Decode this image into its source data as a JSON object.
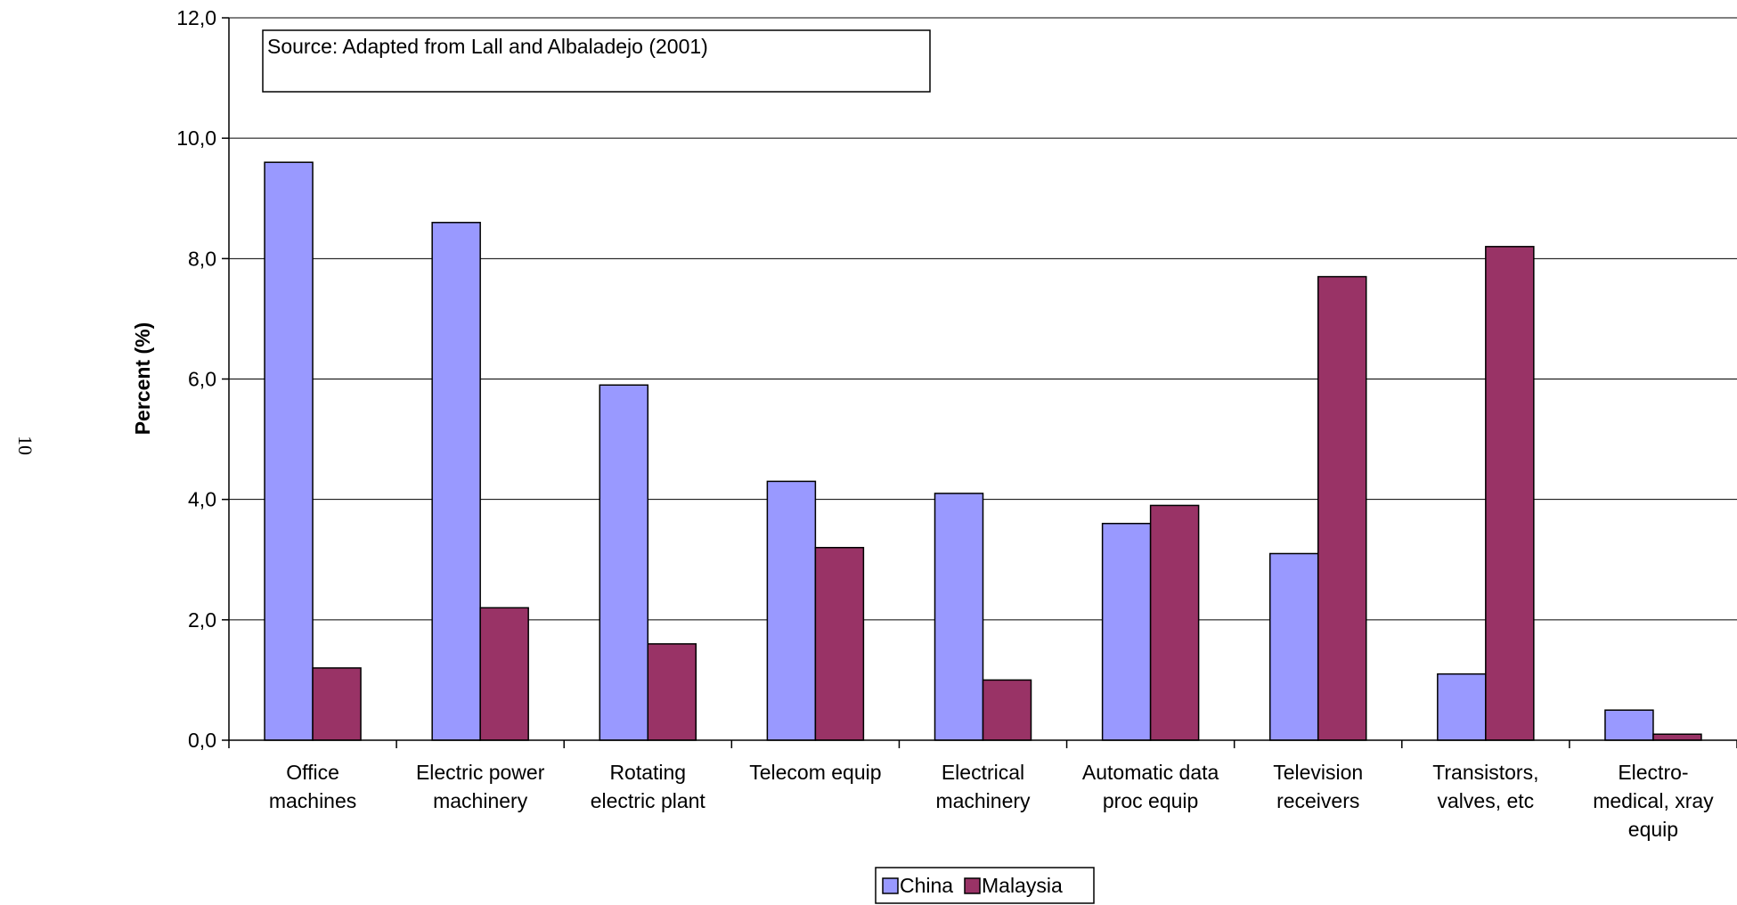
{
  "page_number": "10",
  "chart_data": {
    "type": "bar",
    "title": "",
    "xlabel": "",
    "ylabel": "Percent (%)",
    "ylim": [
      0,
      12
    ],
    "yticks": [
      "0,0",
      "2,0",
      "4,0",
      "6,0",
      "8,0",
      "10,0",
      "12,0"
    ],
    "grid": true,
    "legend_position": "bottom",
    "annotation": "Source: Adapted from Lall and Albaladejo (2001)",
    "categories": [
      [
        "Office",
        "machines"
      ],
      [
        "Electric power",
        "machinery"
      ],
      [
        "Rotating",
        "electric plant"
      ],
      [
        "Telecom equip"
      ],
      [
        "Electrical",
        "machinery"
      ],
      [
        "Automatic data",
        "proc equip"
      ],
      [
        "Television",
        "receivers"
      ],
      [
        "Transistors,",
        "valves, etc"
      ],
      [
        "Electro-",
        "medical, xray",
        "equip"
      ]
    ],
    "series": [
      {
        "name": "China",
        "color": "#9999ff",
        "values": [
          9.6,
          8.6,
          5.9,
          4.3,
          4.1,
          3.6,
          3.1,
          1.1,
          0.5
        ]
      },
      {
        "name": "Malaysia",
        "color": "#993366",
        "values": [
          1.2,
          2.2,
          1.6,
          3.2,
          1.0,
          3.9,
          7.7,
          8.2,
          0.1
        ]
      }
    ]
  }
}
